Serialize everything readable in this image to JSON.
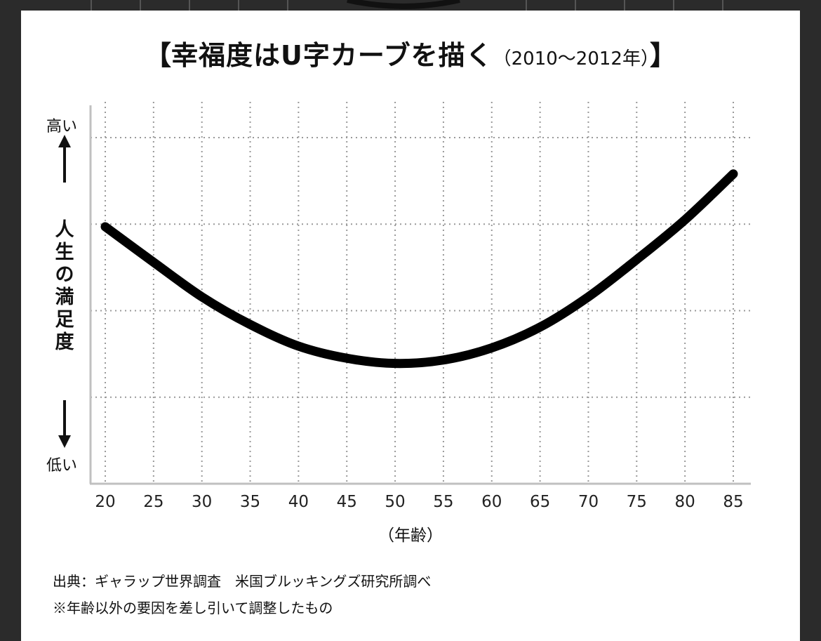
{
  "title": {
    "open_bracket": "【",
    "main": "幸福度はU字カーブを描く",
    "sub": "（2010〜2012年）",
    "close_bracket": "】"
  },
  "y_axis": {
    "label": "人生の満足度",
    "high": "高い",
    "low": "低い"
  },
  "x_axis": {
    "unit_label": "（年齢）"
  },
  "notes": {
    "source": "出典：ギャラップ世界調査　米国ブルッキングズ研究所調べ",
    "caveat": "※年齢以外の要因を差し引いて調整したもの"
  },
  "chart_data": {
    "type": "line",
    "title": "幸福度はU字カーブを描く（2010〜2012年）",
    "xlabel": "（年齢）",
    "ylabel": "人生の満足度",
    "x_ticks": [
      20,
      25,
      30,
      35,
      40,
      45,
      50,
      55,
      60,
      65,
      70,
      75,
      80,
      85
    ],
    "xlim": [
      20,
      85
    ],
    "ylim": [
      0,
      4
    ],
    "y_scale_note": "no numeric y values; 高い (top) to 低い (bottom)",
    "grid": true,
    "series": [
      {
        "values": [
          {
            "x": 20,
            "y": 2.97
          },
          {
            "x": 25,
            "y": 2.56
          },
          {
            "x": 30,
            "y": 2.16
          },
          {
            "x": 35,
            "y": 1.84
          },
          {
            "x": 40,
            "y": 1.59
          },
          {
            "x": 45,
            "y": 1.45
          },
          {
            "x": 50,
            "y": 1.39
          },
          {
            "x": 55,
            "y": 1.43
          },
          {
            "x": 60,
            "y": 1.57
          },
          {
            "x": 65,
            "y": 1.81
          },
          {
            "x": 70,
            "y": 2.16
          },
          {
            "x": 75,
            "y": 2.59
          },
          {
            "x": 80,
            "y": 3.05
          },
          {
            "x": 85,
            "y": 3.58
          }
        ]
      }
    ],
    "colors": {
      "line": "#000000",
      "grid": "#999999",
      "axis": "#bfbfbf"
    }
  }
}
